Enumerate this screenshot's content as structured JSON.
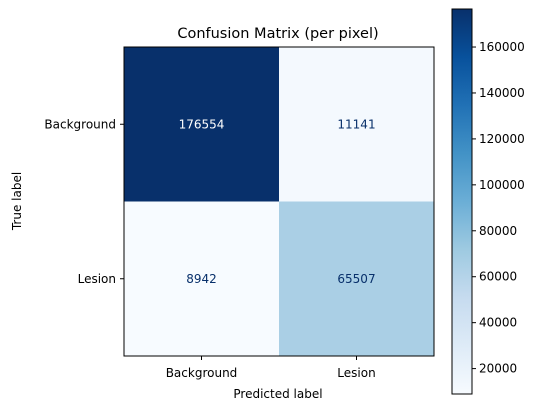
{
  "chart_data": {
    "type": "heatmap",
    "title": "Confusion Matrix (per pixel)",
    "xlabel": "Predicted label",
    "ylabel": "True label",
    "x_categories": [
      "Background",
      "Lesion"
    ],
    "y_categories": [
      "Background",
      "Lesion"
    ],
    "values": [
      [
        176554,
        11141
      ],
      [
        8942,
        65507
      ]
    ],
    "colormap": "Blues",
    "colorbar": {
      "range": [
        8942,
        176554
      ],
      "ticks": [
        20000,
        40000,
        60000,
        80000,
        100000,
        120000,
        140000,
        160000
      ]
    },
    "grid": false
  },
  "colors": {
    "cmap_low": "#f7fbff",
    "cmap_high": "#08306b",
    "text_on_light": "#08306b",
    "text_on_dark": "#ffffff"
  }
}
